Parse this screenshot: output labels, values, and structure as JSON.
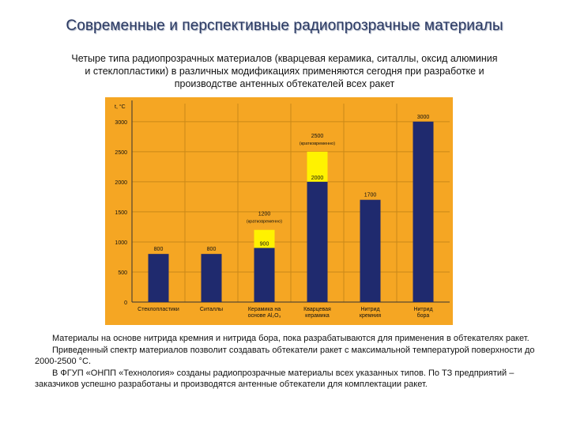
{
  "slide": {
    "title": "Современные и перспективные радиопрозрачные материалы",
    "subtitle_lines": [
      "Четыре типа радиопрозрачных материалов (кварцевая керамика, ситаллы, оксид алюминия",
      "и стеклопластики) в различных модификациях применяются сегодня при разработке и",
      "производстве антенных обтекателей всех ракет"
    ],
    "notes": [
      "Материалы на основе нитрида кремния и нитрида бора, пока разрабатываются для применения в обтекателях ракет.",
      "Приведенный спектр материалов позволит создавать обтекатели ракет с максимальной температурой поверхности до 2000-2500 °С.",
      "В ФГУП «ОНПП «Технология» созданы радиопрозрачные материалы всех указанных типов. По ТЗ предприятий – заказчиков успешно разработаны и производятся антенные обтекатели для комплектации ракет."
    ]
  },
  "colors": {
    "background": "#F5A623",
    "bar": "#1F2A6E",
    "short_term": "#FFF200",
    "grid": "#C98818",
    "text": "#111111"
  },
  "chart_data": {
    "type": "bar",
    "ylabel": "t, °C",
    "ylim": [
      0,
      3300
    ],
    "yticks": [
      0,
      500,
      1000,
      1500,
      2000,
      2500,
      3000
    ],
    "categories": [
      [
        "Стеклопластики"
      ],
      [
        "Ситаллы"
      ],
      [
        "Керамика на",
        "основе Al₂O₃"
      ],
      [
        "Кварцевая",
        "керамика"
      ],
      [
        "Нитрид",
        "кремния"
      ],
      [
        "Нитрид",
        "бора"
      ]
    ],
    "series": [
      {
        "values": [
          800,
          800,
          900,
          2000,
          1700,
          3000
        ]
      },
      {
        "values": [
          null,
          null,
          1200,
          2500,
          null,
          null
        ]
      }
    ],
    "value_labels": [
      "800",
      "800",
      "900",
      "2000",
      "1700",
      "3000"
    ],
    "short_term_labels": [
      null,
      null,
      "1200",
      "2500",
      null,
      null
    ],
    "short_term_note": "(кратковременно)"
  }
}
